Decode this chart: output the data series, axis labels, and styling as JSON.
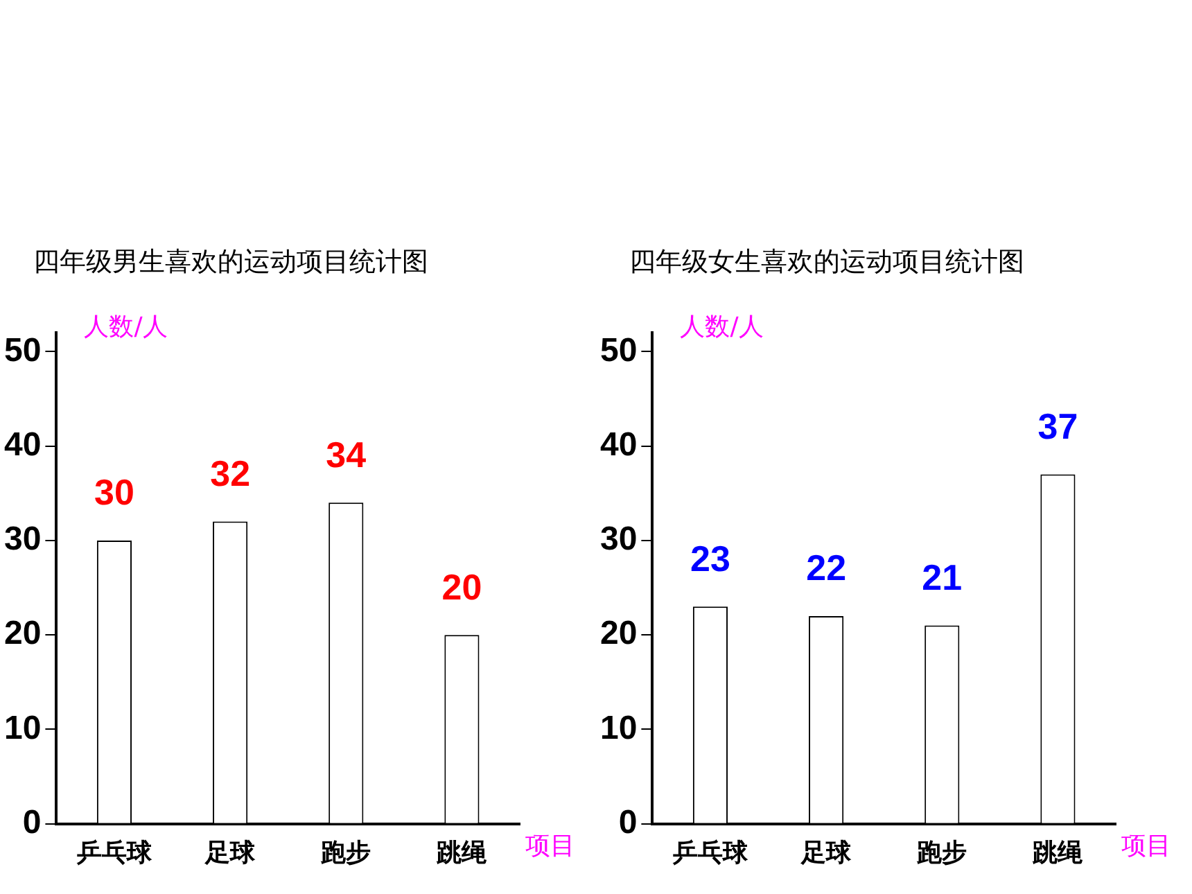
{
  "chart_data": [
    {
      "type": "bar",
      "title": "四年级男生喜欢的运动项目统计图",
      "ylabel": "人数/人",
      "xlabel": "项目",
      "categories": [
        "乒乓球",
        "足球",
        "跑步",
        "跳绳"
      ],
      "values": [
        30,
        32,
        34,
        20
      ],
      "color": "#ffffff",
      "ylim": [
        0,
        52
      ],
      "yticks": [
        0,
        10,
        20,
        30,
        40,
        50
      ],
      "data_labels": true,
      "grid": false,
      "legend": false
    },
    {
      "type": "bar",
      "title": "四年级女生喜欢的运动项目统计图",
      "ylabel": "人数/人",
      "xlabel": "项目",
      "categories": [
        "乒乓球",
        "足球",
        "跑步",
        "跳绳"
      ],
      "values": [
        23,
        22,
        21,
        37
      ],
      "color": "#ffffff",
      "ylim": [
        0,
        52
      ],
      "yticks": [
        0,
        10,
        20,
        30,
        40,
        50
      ],
      "data_labels": true,
      "grid": false,
      "legend": false
    }
  ]
}
